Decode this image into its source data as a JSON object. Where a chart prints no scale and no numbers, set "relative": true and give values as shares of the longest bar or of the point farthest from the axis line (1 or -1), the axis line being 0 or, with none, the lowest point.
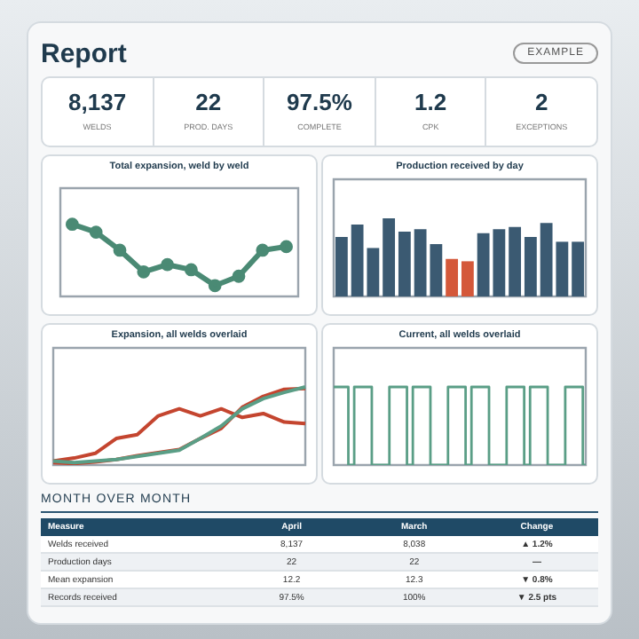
{
  "chart_data": [
    {
      "type": "other",
      "title": "Report",
      "annotations": [
        "EXAMPLE"
      ],
      "categories": [
        "WELDS",
        "PROD. DAYS",
        "COMPLETE",
        "CPK",
        "EXCEPTIONS"
      ],
      "value_labels": [
        "8,137",
        "22",
        "97.5%",
        "1.2",
        "2"
      ]
    },
    {
      "type": "line",
      "title": "Total expansion, weld by weld",
      "relative": true,
      "categories": [
        null,
        null,
        null,
        null,
        null,
        null,
        null,
        null,
        null,
        null
      ],
      "values": [
        1,
        0.89,
        0.64,
        0.34,
        0.44,
        0.37,
        0.15,
        0.28,
        0.64,
        0.69
      ],
      "color": "#4a8a74",
      "marker": "circle"
    },
    {
      "type": "bar",
      "title": "Production received by day",
      "relative": true,
      "categories": [
        null,
        null,
        null,
        null,
        null,
        null,
        null,
        null,
        null,
        null,
        null,
        null,
        null,
        null,
        null,
        null
      ],
      "values": [
        0.76,
        0.92,
        0.62,
        1,
        0.83,
        0.86,
        0.67,
        0.48,
        0.45,
        0.81,
        0.86,
        0.89,
        0.76,
        0.94,
        0.7,
        0.7
      ],
      "colors": [
        "#3b5a72",
        "#3b5a72",
        "#3b5a72",
        "#3b5a72",
        "#3b5a72",
        "#3b5a72",
        "#3b5a72",
        "#d4583a",
        "#d4583a",
        "#3b5a72",
        "#3b5a72",
        "#3b5a72",
        "#3b5a72",
        "#3b5a72",
        "#3b5a72",
        "#3b5a72"
      ]
    },
    {
      "type": "line",
      "title": "Expansion, all welds overlaid",
      "relative": true,
      "categories": [
        null,
        null,
        null,
        null,
        null,
        null,
        null,
        null,
        null,
        null,
        null,
        null,
        null
      ],
      "series": [
        {
          "color": "#5a9e86",
          "values": [
            0.05,
            0.03,
            0.05,
            0.07,
            0.11,
            0.15,
            0.19,
            0.34,
            0.5,
            0.72,
            0.85,
            0.93,
            1
          ]
        },
        {
          "color": "#c4452f",
          "values": [
            0.03,
            0.02,
            0.04,
            0.07,
            0.12,
            0.16,
            0.2,
            0.34,
            0.47,
            0.74,
            0.88,
            0.97,
            0.98
          ]
        },
        {
          "color": "#c4452f",
          "values": [
            0.05,
            0.09,
            0.15,
            0.34,
            0.39,
            0.63,
            0.72,
            0.63,
            0.72,
            0.61,
            0.66,
            0.55,
            0.53
          ]
        }
      ]
    },
    {
      "type": "step",
      "title": "Current, all welds overlaid",
      "relative": true,
      "categories": [
        null,
        null,
        null,
        null,
        null,
        null,
        null,
        null,
        null,
        null,
        null,
        null,
        null,
        null,
        null,
        null,
        null,
        null,
        null,
        null,
        null,
        null,
        null,
        null,
        null,
        null,
        null,
        null,
        null,
        null,
        null,
        null,
        null,
        null,
        null,
        null,
        null,
        null,
        null,
        null,
        null,
        null,
        null,
        null
      ],
      "values": [
        1,
        1,
        1,
        0,
        1,
        1,
        1,
        0,
        0,
        0,
        1,
        1,
        1,
        0,
        1,
        1,
        1,
        0,
        0,
        0,
        1,
        1,
        1,
        0,
        1,
        1,
        1,
        0,
        0,
        0,
        1,
        1,
        1,
        0,
        1,
        1,
        1,
        0,
        0,
        0,
        1,
        1,
        1,
        0
      ],
      "color": "#5a9e86"
    },
    {
      "type": "other",
      "title": "MONTH OVER MONTH",
      "categories": [
        "Measure",
        "April",
        "March",
        "Change"
      ],
      "cell_labels": [
        [
          "Welds received",
          "8,137",
          "8,038",
          "▲ 1.2%"
        ],
        [
          "Production days",
          "22",
          "22",
          "—"
        ],
        [
          "Mean expansion",
          "12.2",
          "12.3",
          "▼ 0.8%"
        ],
        [
          "Records received",
          "97.5%",
          "100%",
          "▼ 2.5 pts"
        ]
      ]
    }
  ]
}
